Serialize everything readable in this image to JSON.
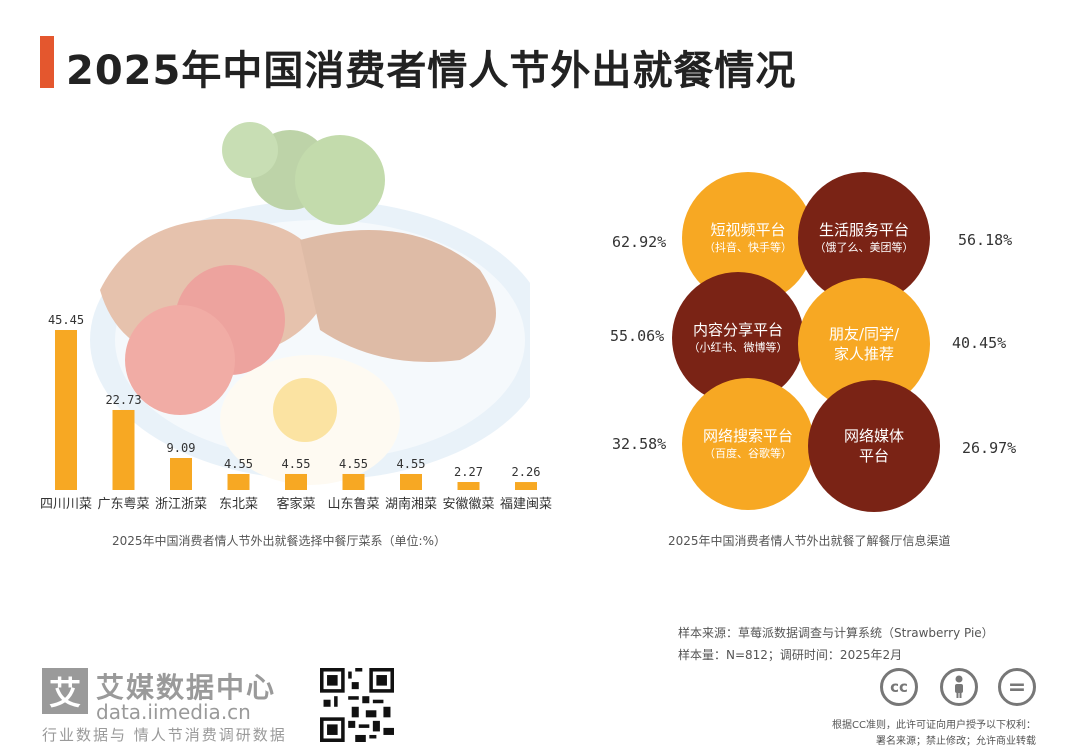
{
  "title": "2025年中国消费者情人节外出就餐情况",
  "bar_caption": "2025年中国消费者情人节外出就餐选择中餐厅菜系（单位:%）",
  "bubble_caption": "2025年中国消费者情人节外出就餐了解餐厅信息渠道",
  "chart_data": [
    {
      "type": "bar",
      "title": "2025年中国消费者情人节外出就餐选择中餐厅菜系（单位:%）",
      "categories": [
        "四川川菜",
        "广东粤菜",
        "浙江浙菜",
        "东北菜",
        "客家菜",
        "山东鲁菜",
        "湖南湘菜",
        "安徽徽菜",
        "福建闽菜"
      ],
      "values": [
        45.45,
        22.73,
        9.09,
        4.55,
        4.55,
        4.55,
        4.55,
        2.27,
        2.26
      ],
      "value_labels": [
        "45.45",
        "22.73",
        "9.09",
        "4.55",
        "4.55",
        "4.55",
        "4.55",
        "2.27",
        "2.26"
      ],
      "color": "#f7a823"
    },
    {
      "type": "bubble",
      "title": "2025年中国消费者情人节外出就餐了解餐厅信息渠道",
      "items": [
        {
          "label": "短视频平台",
          "sub": "（抖音、快手等）",
          "value": 62.92,
          "pct": "62.92%",
          "color": "#f7a823"
        },
        {
          "label": "生活服务平台",
          "sub": "（饿了么、美团等）",
          "value": 56.18,
          "pct": "56.18%",
          "color": "#7a2315"
        },
        {
          "label": "内容分享平台",
          "sub": "（小红书、微博等）",
          "value": 55.06,
          "pct": "55.06%",
          "color": "#7a2315"
        },
        {
          "label": "朋友/同学/",
          "sub": "家人推荐",
          "value": 40.45,
          "pct": "40.45%",
          "color": "#f7a823"
        },
        {
          "label": "网络搜索平台",
          "sub": "（百度、谷歌等）",
          "value": 32.58,
          "pct": "32.58%",
          "color": "#f7a823"
        },
        {
          "label": "网络媒体",
          "sub": "平台",
          "value": 26.97,
          "pct": "26.97%",
          "color": "#7a2315"
        }
      ]
    }
  ],
  "source": {
    "line1": "样本来源：草莓派数据调查与计算系统（Strawberry Pie）",
    "line2": "样本量：N=812；调研时间：2025年2月"
  },
  "logo": {
    "mark": "艾",
    "name": "艾媒数据中心",
    "url": "data.iimedia.cn",
    "sub": "行业数据与 情人节消费调研数据"
  },
  "license": {
    "line1": "根据CC准则，此许可证向用户授予以下权利：",
    "line2": "署名来源；禁止修改；允许商业转载"
  },
  "cc_icons": [
    "cc",
    "by",
    "nd"
  ]
}
